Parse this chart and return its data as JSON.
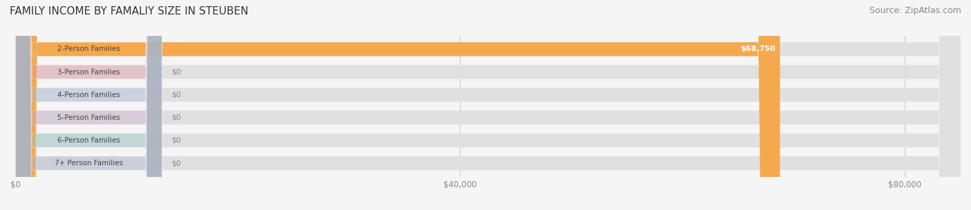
{
  "title": "FAMILY INCOME BY FAMALIY SIZE IN STEUBEN",
  "source": "Source: ZipAtlas.com",
  "categories": [
    "2-Person Families",
    "3-Person Families",
    "4-Person Families",
    "5-Person Families",
    "6-Person Families",
    "7+ Person Families"
  ],
  "values": [
    68750,
    0,
    0,
    0,
    0,
    0
  ],
  "bar_colors": [
    "#F5A94E",
    "#E8909A",
    "#A8B8D8",
    "#C4A8C8",
    "#88C8C0",
    "#A8B0D0"
  ],
  "label_colors": [
    "#F5A94E",
    "#E8909A",
    "#A8B8D8",
    "#C4A8C8",
    "#88C8C0",
    "#A8B0D0"
  ],
  "value_labels": [
    "$68,750",
    "$0",
    "$0",
    "$0",
    "$0",
    "$0"
  ],
  "xlim": [
    0,
    85000
  ],
  "xticks": [
    0,
    40000,
    80000
  ],
  "xticklabels": [
    "$0",
    "$40,000",
    "$80,000"
  ],
  "background_color": "#f5f5f5",
  "bar_bg_color": "#e8e8e8",
  "title_fontsize": 11,
  "source_fontsize": 9,
  "bar_height": 0.6,
  "figsize": [
    14.06,
    3.05
  ],
  "dpi": 100
}
